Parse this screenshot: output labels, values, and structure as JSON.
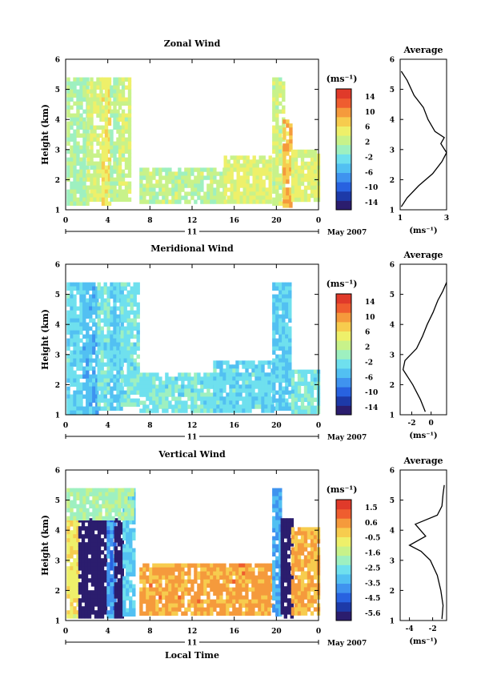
{
  "chart_data": [
    {
      "type": "heatmap",
      "title": "Zonal Wind",
      "ylabel": "Height (km)",
      "xticks": [
        "0",
        "4",
        "8",
        "12",
        "16",
        "20",
        "0"
      ],
      "xlim": [
        0,
        24
      ],
      "yticks": [
        "1",
        "2",
        "3",
        "4",
        "5",
        "6"
      ],
      "ylim": [
        1,
        6
      ],
      "date_day": "11",
      "date_label": "May 2007",
      "colorbar": {
        "unit": "(ms⁻¹)",
        "ticks": [
          "14",
          "10",
          "6",
          "2",
          "-2",
          "-6",
          "-10",
          "-14"
        ],
        "range": [
          -16,
          16
        ]
      },
      "regions": [
        {
          "t0": 0.1,
          "t1": 2.0,
          "h0": 1.2,
          "h1": 5.4,
          "v": 1
        },
        {
          "t0": 2.0,
          "t1": 3.4,
          "h0": 1.3,
          "h1": 5.4,
          "v": 3
        },
        {
          "t0": 3.4,
          "t1": 4.2,
          "h0": 1.2,
          "h1": 5.4,
          "v": 5
        },
        {
          "t0": 4.2,
          "t1": 5.0,
          "h0": 1.3,
          "h1": 5.4,
          "v": 1
        },
        {
          "t0": 5.0,
          "t1": 6.2,
          "h0": 1.4,
          "h1": 5.4,
          "v": 3
        },
        {
          "t0": 7.0,
          "t1": 15.0,
          "h0": 1.3,
          "h1": 2.4,
          "v": 2
        },
        {
          "t0": 15.0,
          "t1": 19.5,
          "h0": 1.3,
          "h1": 2.8,
          "v": 4
        },
        {
          "t0": 19.6,
          "t1": 20.6,
          "h0": 1.2,
          "h1": 5.4,
          "v": 3
        },
        {
          "t0": 20.6,
          "t1": 21.4,
          "h0": 1.2,
          "h1": 4.0,
          "v": 8
        },
        {
          "t0": 21.4,
          "t1": 23.9,
          "h0": 1.3,
          "h1": 3.0,
          "v": 4
        }
      ],
      "profile": {
        "title": "Average",
        "xlabel": "(ms⁻¹)",
        "xticks": [
          "1",
          "3"
        ],
        "xlim": [
          1,
          3
        ],
        "heights": [
          1.1,
          1.4,
          1.8,
          2.2,
          2.6,
          2.9,
          3.2,
          3.4,
          3.6,
          4.0,
          4.4,
          4.8,
          5.3,
          5.6
        ],
        "values": [
          1.05,
          1.3,
          1.8,
          2.4,
          2.8,
          3.0,
          2.75,
          2.9,
          2.5,
          2.2,
          2.0,
          1.6,
          1.3,
          1.05
        ]
      }
    },
    {
      "type": "heatmap",
      "title": "Meridional Wind",
      "ylabel": "Height (km)",
      "xticks": [
        "0",
        "4",
        "8",
        "12",
        "16",
        "20",
        "0"
      ],
      "xlim": [
        0,
        24
      ],
      "yticks": [
        "1",
        "2",
        "3",
        "4",
        "5",
        "6"
      ],
      "ylim": [
        1,
        6
      ],
      "date_day": "11",
      "date_label": "May 2007",
      "colorbar": {
        "unit": "(ms⁻¹)",
        "ticks": [
          "14",
          "10",
          "6",
          "2",
          "-2",
          "-6",
          "-10",
          "-14"
        ],
        "range": [
          -16,
          16
        ]
      },
      "regions": [
        {
          "t0": 0.1,
          "t1": 1.6,
          "h0": 1.1,
          "h1": 5.4,
          "v": -3
        },
        {
          "t0": 1.6,
          "t1": 3.0,
          "h0": 1.1,
          "h1": 5.4,
          "v": -5
        },
        {
          "t0": 3.0,
          "t1": 4.2,
          "h0": 1.2,
          "h1": 5.4,
          "v": -2
        },
        {
          "t0": 4.2,
          "t1": 5.2,
          "h0": 1.2,
          "h1": 5.4,
          "v": -4
        },
        {
          "t0": 5.2,
          "t1": 7.0,
          "h0": 1.3,
          "h1": 5.4,
          "v": -2
        },
        {
          "t0": 7.0,
          "t1": 14.0,
          "h0": 1.2,
          "h1": 2.4,
          "v": -2
        },
        {
          "t0": 14.0,
          "t1": 19.5,
          "h0": 1.2,
          "h1": 2.8,
          "v": -3
        },
        {
          "t0": 19.6,
          "t1": 21.4,
          "h0": 1.2,
          "h1": 5.4,
          "v": -4
        },
        {
          "t0": 21.4,
          "t1": 24.0,
          "h0": 1.1,
          "h1": 2.5,
          "v": -2
        }
      ],
      "profile": {
        "title": "Average",
        "xlabel": "(ms⁻¹)",
        "xticks": [
          "-2",
          "0"
        ],
        "xlim": [
          -3.2,
          1.6
        ],
        "heights": [
          1.1,
          1.5,
          2.0,
          2.5,
          2.8,
          3.2,
          3.6,
          4.0,
          4.4,
          4.8,
          5.1,
          5.4
        ],
        "values": [
          -0.6,
          -1.1,
          -1.9,
          -2.9,
          -2.7,
          -1.5,
          -0.9,
          -0.4,
          0.2,
          0.7,
          1.2,
          1.6
        ]
      }
    },
    {
      "type": "heatmap",
      "title": "Vertical Wind",
      "ylabel": "Height (km)",
      "xlabel": "Local Time",
      "xticks": [
        "0",
        "4",
        "8",
        "12",
        "16",
        "20",
        "0"
      ],
      "xlim": [
        0,
        24
      ],
      "yticks": [
        "1",
        "2",
        "3",
        "4",
        "5",
        "6"
      ],
      "ylim": [
        1,
        6
      ],
      "date_day": "11",
      "date_label": "May 2007",
      "colorbar": {
        "unit": "(ms⁻¹)",
        "ticks": [
          "1.5",
          "0.6",
          "-0.5",
          "-1.6",
          "-2.5",
          "-3.5",
          "-4.5",
          "-5.6"
        ],
        "range": [
          -6,
          2
        ]
      },
      "regions": [
        {
          "t0": 0.1,
          "t1": 1.2,
          "h0": 1.2,
          "h1": 4.4,
          "v": -0.6
        },
        {
          "t0": 1.2,
          "t1": 3.9,
          "h0": 1.2,
          "h1": 4.4,
          "v": -6.0
        },
        {
          "t0": 3.9,
          "t1": 4.6,
          "h0": 1.2,
          "h1": 4.4,
          "v": -3.8
        },
        {
          "t0": 4.6,
          "t1": 5.4,
          "h0": 1.2,
          "h1": 4.4,
          "v": -6.0
        },
        {
          "t0": 5.4,
          "t1": 6.4,
          "h0": 1.2,
          "h1": 5.4,
          "v": -3.0
        },
        {
          "t0": 0.1,
          "t1": 6.4,
          "h0": 4.4,
          "h1": 5.4,
          "v": -1.8
        },
        {
          "t0": 7.0,
          "t1": 19.6,
          "h0": 1.2,
          "h1": 2.9,
          "v": 0.3
        },
        {
          "t0": 19.6,
          "t1": 20.4,
          "h0": 1.2,
          "h1": 5.4,
          "v": -3.5
        },
        {
          "t0": 20.4,
          "t1": 21.4,
          "h0": 1.2,
          "h1": 4.4,
          "v": -6.0
        },
        {
          "t0": 21.4,
          "t1": 24.0,
          "h0": 1.2,
          "h1": 4.1,
          "v": 0.2
        }
      ],
      "profile": {
        "title": "Average",
        "xlabel": "(ms⁻¹)",
        "xticks": [
          "-4",
          "-2"
        ],
        "xlim": [
          -4.8,
          -0.8
        ],
        "heights": [
          1.05,
          1.5,
          2.0,
          2.5,
          3.0,
          3.3,
          3.5,
          3.8,
          4.2,
          4.5,
          4.8,
          5.2,
          5.5
        ],
        "values": [
          -1.2,
          -1.1,
          -1.3,
          -1.6,
          -2.2,
          -3.0,
          -4.0,
          -2.6,
          -3.5,
          -1.6,
          -1.2,
          -1.1,
          -1.0
        ]
      }
    }
  ]
}
